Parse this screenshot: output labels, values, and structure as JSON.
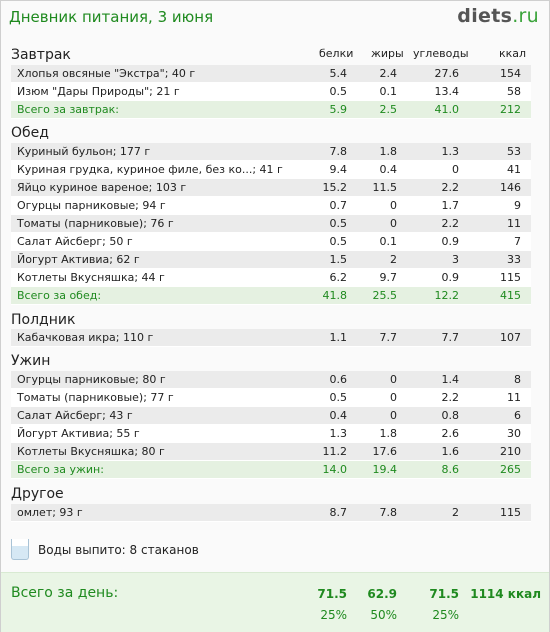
{
  "header": {
    "title": "Дневник питания, 3 июня",
    "logo_name": "diets",
    "logo_tld": ".ru"
  },
  "columns": [
    "белки",
    "жиры",
    "углеводы",
    "ккал"
  ],
  "breakfast": {
    "title": "Завтрак",
    "rows": [
      {
        "name": "Хлопья овсяные \"Экстра\"; 40 г",
        "p": "5.4",
        "f": "2.4",
        "c": "27.6",
        "k": "154"
      },
      {
        "name": "Изюм \"Дары Природы\"; 21 г",
        "p": "0.5",
        "f": "0.1",
        "c": "13.4",
        "k": "58"
      }
    ],
    "total": {
      "name": "Всего за завтрак:",
      "p": "5.9",
      "f": "2.5",
      "c": "41.0",
      "k": "212"
    }
  },
  "lunch": {
    "title": "Обед",
    "rows": [
      {
        "name": "Куриный бульон; 177 г",
        "p": "7.8",
        "f": "1.8",
        "c": "1.3",
        "k": "53"
      },
      {
        "name": "Куриная грудка, куриное филе, без ко...; 41 г",
        "p": "9.4",
        "f": "0.4",
        "c": "0",
        "k": "41"
      },
      {
        "name": "Яйцо куриное вареное; 103 г",
        "p": "15.2",
        "f": "11.5",
        "c": "2.2",
        "k": "146"
      },
      {
        "name": "Огурцы парниковые; 94 г",
        "p": "0.7",
        "f": "0",
        "c": "1.7",
        "k": "9"
      },
      {
        "name": "Томаты (парниковые); 76 г",
        "p": "0.5",
        "f": "0",
        "c": "2.2",
        "k": "11"
      },
      {
        "name": "Салат Айсберг; 50 г",
        "p": "0.5",
        "f": "0.1",
        "c": "0.9",
        "k": "7"
      },
      {
        "name": "Йогурт Активиа; 62 г",
        "p": "1.5",
        "f": "2",
        "c": "3",
        "k": "33"
      },
      {
        "name": "Котлеты Вкусняшка; 44 г",
        "p": "6.2",
        "f": "9.7",
        "c": "0.9",
        "k": "115"
      }
    ],
    "total": {
      "name": "Всего за обед:",
      "p": "41.8",
      "f": "25.5",
      "c": "12.2",
      "k": "415"
    }
  },
  "snack": {
    "title": "Полдник",
    "rows": [
      {
        "name": "Кабачковая икра; 110 г",
        "p": "1.1",
        "f": "7.7",
        "c": "7.7",
        "k": "107"
      }
    ]
  },
  "dinner": {
    "title": "Ужин",
    "rows": [
      {
        "name": "Огурцы парниковые; 80 г",
        "p": "0.6",
        "f": "0",
        "c": "1.4",
        "k": "8"
      },
      {
        "name": "Томаты (парниковые); 77 г",
        "p": "0.5",
        "f": "0",
        "c": "2.2",
        "k": "11"
      },
      {
        "name": "Салат Айсберг; 43 г",
        "p": "0.4",
        "f": "0",
        "c": "0.8",
        "k": "6"
      },
      {
        "name": "Йогурт Активиа; 55 г",
        "p": "1.3",
        "f": "1.8",
        "c": "2.6",
        "k": "30"
      },
      {
        "name": "Котлеты Вкусняшка; 80 г",
        "p": "11.2",
        "f": "17.6",
        "c": "1.6",
        "k": "210"
      }
    ],
    "total": {
      "name": "Всего за ужин:",
      "p": "14.0",
      "f": "19.4",
      "c": "8.6",
      "k": "265"
    }
  },
  "other": {
    "title": "Другое",
    "rows": [
      {
        "name": "омлет; 93 г",
        "p": "8.7",
        "f": "7.8",
        "c": "2",
        "k": "115"
      }
    ]
  },
  "water": {
    "label": "Воды выпито: 8 стаканов",
    "icon": "water-glass-icon"
  },
  "day": {
    "label": "Всего за день:",
    "p": "71.5",
    "f": "62.9",
    "c": "71.5",
    "k": "1114 ккал",
    "p_pct": "25%",
    "f_pct": "50%",
    "c_pct": "25%"
  },
  "colors": {
    "accent": "#1f8a1f",
    "total_bg": "#e5f1e1",
    "day_bg": "#e9f5e5"
  }
}
